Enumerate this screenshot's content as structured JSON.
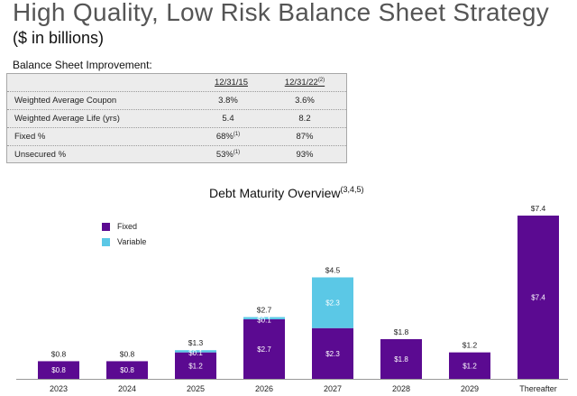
{
  "header": {
    "title": "High Quality, Low Risk Balance Sheet Strategy",
    "subtitle": "($ in billions)"
  },
  "balance_sheet": {
    "heading": "Balance Sheet Improvement:",
    "col1": "12/31/15",
    "col2": "12/31/22",
    "col2_note": "(2)",
    "rows": [
      {
        "label": "Weighted Average Coupon",
        "v1": "3.8%",
        "v1_note": "",
        "v2": "3.6%"
      },
      {
        "label": "Weighted Average Life (yrs)",
        "v1": "5.4",
        "v1_note": "",
        "v2": "8.2"
      },
      {
        "label": "Fixed %",
        "v1": "68%",
        "v1_note": "(1)",
        "v2": "87%"
      },
      {
        "label": "Unsecured %",
        "v1": "53%",
        "v1_note": "(1)",
        "v2": "93%"
      }
    ]
  },
  "colors": {
    "fixed": "#5b0a91",
    "variable": "#5bc8e6"
  },
  "chart_data": {
    "type": "bar",
    "stacked": true,
    "title": "Debt Maturity Overview",
    "title_note": "(3,4,5)",
    "categories": [
      "2023",
      "2024",
      "2025",
      "2026",
      "2027",
      "2028",
      "2029",
      "Thereafter"
    ],
    "series": [
      {
        "name": "Fixed",
        "values": [
          0.8,
          0.8,
          1.2,
          2.7,
          2.3,
          1.8,
          1.2,
          7.4
        ],
        "labels": [
          "$0.8",
          "$0.8",
          "$1.2",
          "$2.7",
          "$2.3",
          "$1.8",
          "$1.2",
          "$7.4"
        ]
      },
      {
        "name": "Variable",
        "values": [
          0.0,
          0.0,
          0.1,
          0.1,
          2.3,
          0.0,
          0.0,
          0.0
        ],
        "labels": [
          "",
          "",
          "$0.1",
          "$0.1",
          "$2.3",
          "",
          "",
          ""
        ]
      }
    ],
    "totals": [
      "$0.8",
      "$0.8",
      "$1.3",
      "$2.7",
      "$4.5",
      "$1.8",
      "$1.2",
      "$7.4"
    ],
    "ylim": [
      0,
      7.4
    ],
    "legend": "top-left",
    "xlabel": "",
    "ylabel": ""
  }
}
